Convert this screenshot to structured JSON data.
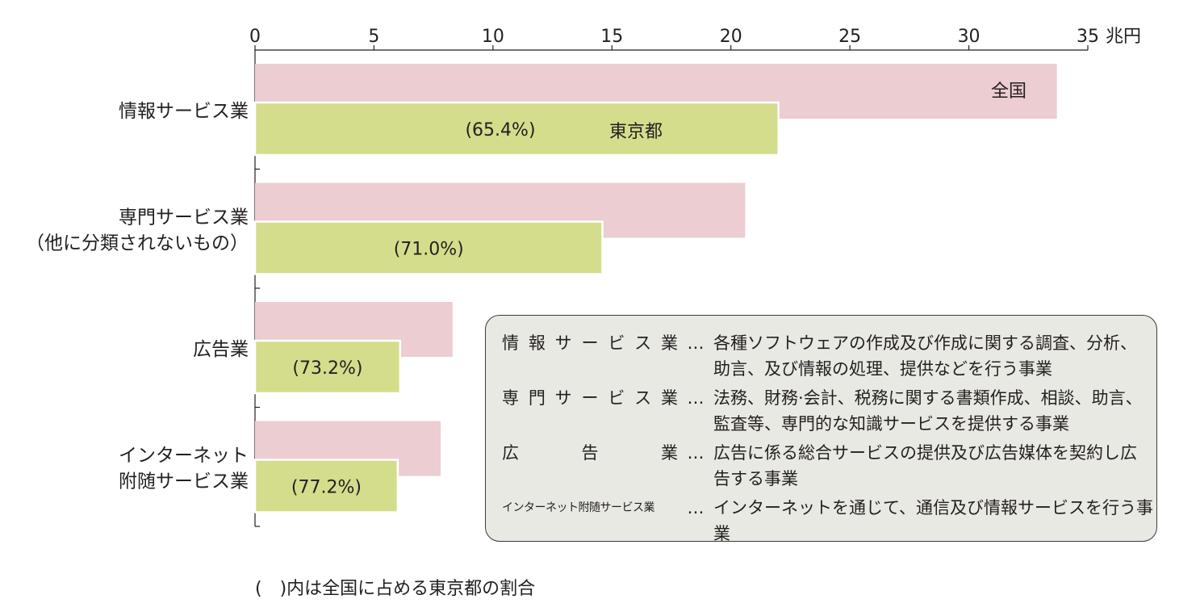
{
  "chart_data": {
    "type": "bar",
    "orientation": "horizontal",
    "unit": "兆円",
    "xlim": [
      0,
      35
    ],
    "ticks": [
      "0",
      "5",
      "10",
      "15",
      "20",
      "25",
      "30",
      "35"
    ],
    "categories": [
      "情報サービス業",
      "専門サービス業\n（他に分類されないもの）",
      "広告業",
      "インターネット\n附随サービス業"
    ],
    "series": [
      {
        "name": "全国",
        "color": "#eccdd1",
        "values": [
          33.7,
          20.6,
          8.3,
          7.8
        ]
      },
      {
        "name": "東京都",
        "color": "#d4dd8c",
        "values": [
          22.0,
          14.6,
          6.1,
          6.0
        ]
      }
    ],
    "share_labels": [
      "(65.4%)",
      "(71.0%)",
      "(73.2%)",
      "(77.2%)"
    ],
    "grid": false
  },
  "legend_box": [
    {
      "term": "情報サービス業",
      "dots": "…",
      "desc": "各種ソフトウェアの作成及び作成に関する調査、分析、助言、及び情報の処理、提供などを行う事業"
    },
    {
      "term": "専門サービス業",
      "dots": "…",
      "desc": "法務、財務·会計、税務に関する書類作成、相談、助言、監査等、専門的な知識サービスを提供する事業"
    },
    {
      "term": "広告業",
      "dots": "…",
      "desc": "広告に係る総合サービスの提供及び広告媒体を契約し広告する事業"
    },
    {
      "term": "インターネット附随サービス業",
      "dots": "…",
      "desc": "インターネットを通じて、通信及び情報サービスを行う事業"
    }
  ],
  "footnote": "(　)内は全国に占める東京都の割合"
}
